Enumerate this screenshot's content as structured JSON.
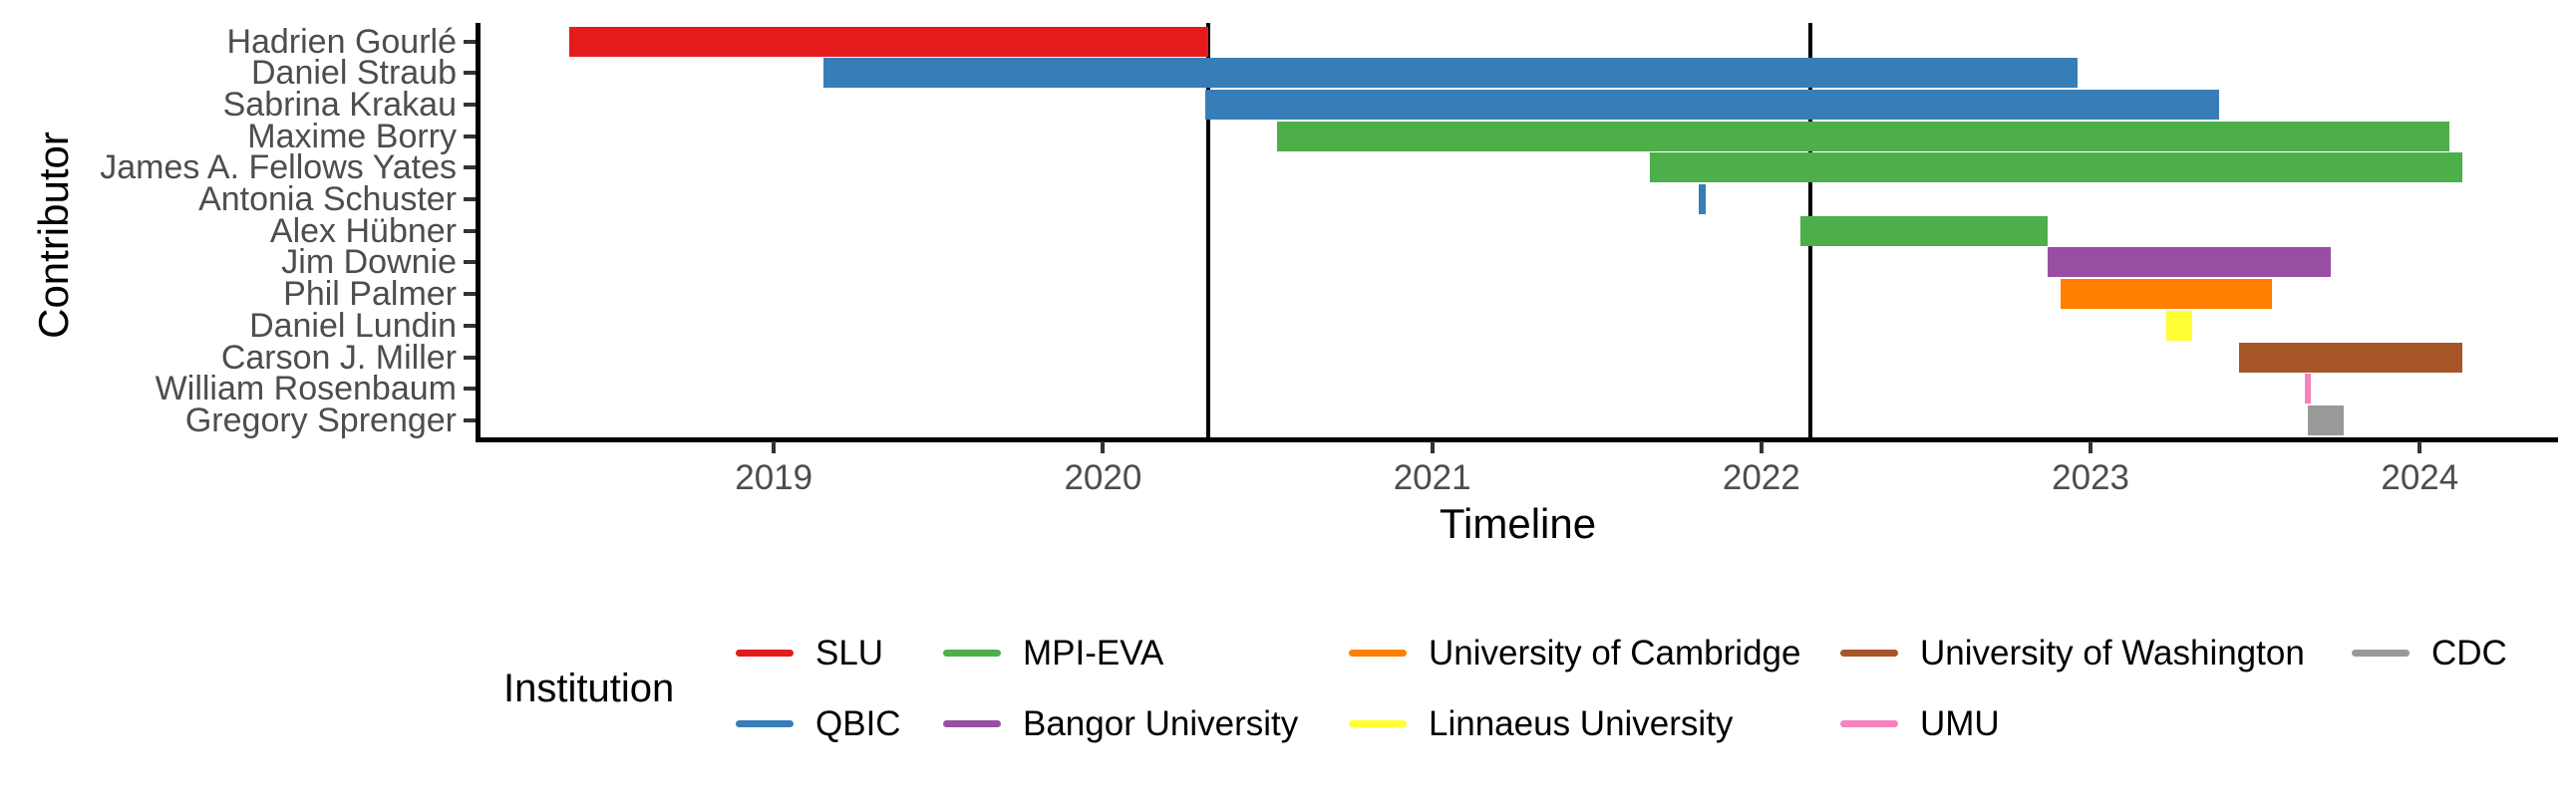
{
  "chart_data": {
    "type": "bar",
    "subtype": "horizontal-gantt-timeline",
    "title": "",
    "xlabel": "Timeline",
    "ylabel": "Contributor",
    "x_ticks": [
      "2019",
      "2020",
      "2021",
      "2022",
      "2023",
      "2024"
    ],
    "xlim": [
      2018.1,
      2024.42
    ],
    "grid": "off",
    "event_lines_x": [
      2020.32,
      2022.15
    ],
    "bars": [
      {
        "contributor": "Hadrien Gourlé",
        "institution": "SLU",
        "start": 2018.38,
        "end": 2020.32
      },
      {
        "contributor": "Daniel Straub",
        "institution": "QBIC",
        "start": 2019.15,
        "end": 2022.96
      },
      {
        "contributor": "Sabrina Krakau",
        "institution": "QBIC",
        "start": 2020.31,
        "end": 2023.39
      },
      {
        "contributor": "Maxime Borry",
        "institution": "MPI-EVA",
        "start": 2020.53,
        "end": 2024.09
      },
      {
        "contributor": "James A. Fellows Yates",
        "institution": "MPI-EVA",
        "start": 2021.66,
        "end": 2024.13
      },
      {
        "contributor": "Antonia Schuster",
        "institution": "QBIC",
        "start": 2021.81,
        "end": 2021.83
      },
      {
        "contributor": "Alex Hübner",
        "institution": "MPI-EVA",
        "start": 2022.12,
        "end": 2022.87
      },
      {
        "contributor": "Jim Downie",
        "institution": "Bangor University",
        "start": 2022.87,
        "end": 2023.73
      },
      {
        "contributor": "Phil Palmer",
        "institution": "University of Cambridge",
        "start": 2022.91,
        "end": 2023.55
      },
      {
        "contributor": "Daniel Lundin",
        "institution": "Linnaeus University",
        "start": 2023.23,
        "end": 2023.31
      },
      {
        "contributor": "Carson J. Miller",
        "institution": "University of Washington",
        "start": 2023.45,
        "end": 2024.13
      },
      {
        "contributor": "William Rosenbaum",
        "institution": "UMU",
        "start": 2023.65,
        "end": 2023.67
      },
      {
        "contributor": "Gregory Sprenger",
        "institution": "CDC",
        "start": 2023.66,
        "end": 2023.77
      }
    ],
    "legend": {
      "title": "Institution",
      "position": "bottom",
      "entries": [
        {
          "label": "SLU",
          "color": "#E41A1C"
        },
        {
          "label": "QBIC",
          "color": "#377EB8"
        },
        {
          "label": "MPI-EVA",
          "color": "#4DAF4A"
        },
        {
          "label": "Bangor University",
          "color": "#984EA3"
        },
        {
          "label": "University of Cambridge",
          "color": "#FF7F00"
        },
        {
          "label": "Linnaeus University",
          "color": "#FFFF33"
        },
        {
          "label": "University of Washington",
          "color": "#A65628"
        },
        {
          "label": "UMU",
          "color": "#F781BF"
        },
        {
          "label": "CDC",
          "color": "#999999"
        }
      ]
    },
    "text_colors": {
      "axis_text": "#4d4d4d",
      "axis_title": "#000000",
      "axis_line": "#000000"
    }
  }
}
